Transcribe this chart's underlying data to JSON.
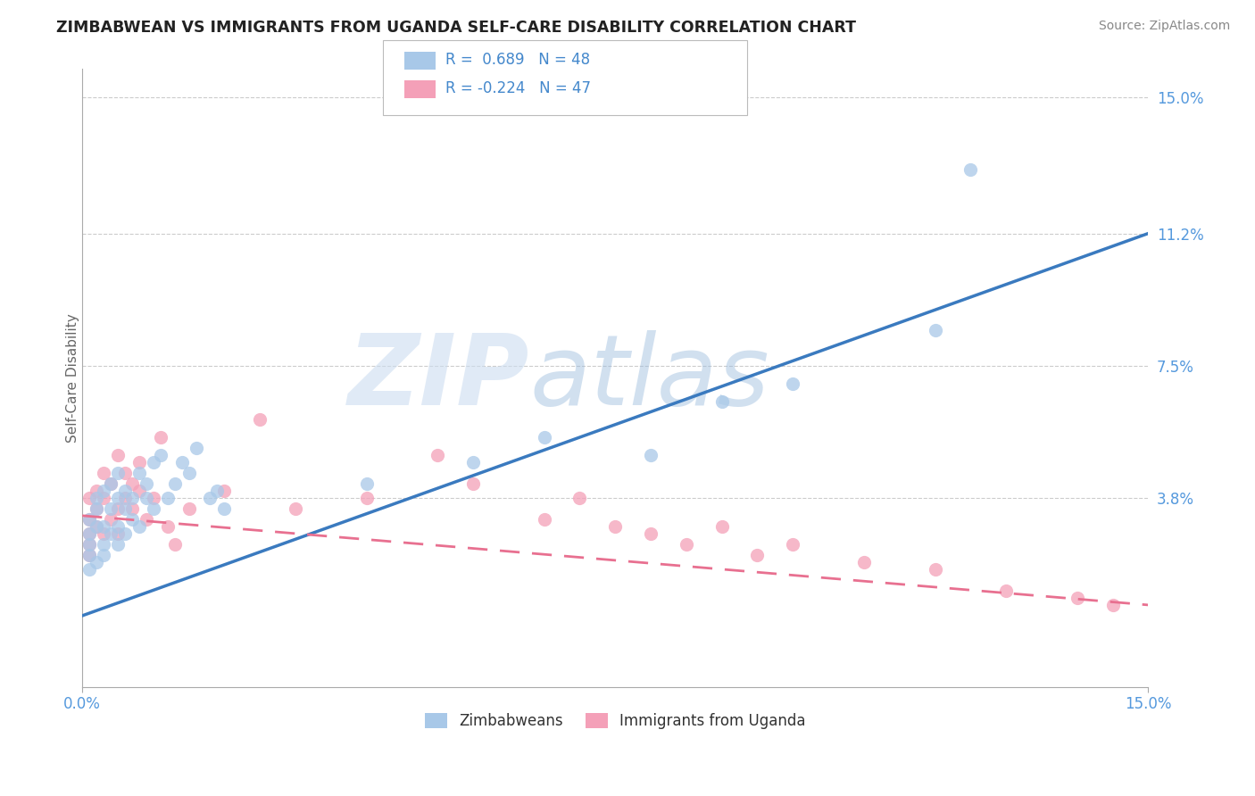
{
  "title": "ZIMBABWEAN VS IMMIGRANTS FROM UGANDA SELF-CARE DISABILITY CORRELATION CHART",
  "source": "Source: ZipAtlas.com",
  "ylabel": "Self-Care Disability",
  "xmin": 0.0,
  "xmax": 0.15,
  "ymin": -0.015,
  "ymax": 0.158,
  "blue_R": 0.689,
  "blue_N": 48,
  "pink_R": -0.224,
  "pink_N": 47,
  "blue_color": "#a8c8e8",
  "pink_color": "#f4a0b8",
  "blue_line_color": "#3a7abf",
  "pink_line_color": "#e87090",
  "legend_label_blue": "Zimbabweans",
  "legend_label_pink": "Immigrants from Uganda",
  "blue_line_x0": 0.0,
  "blue_line_y0": 0.005,
  "blue_line_x1": 0.15,
  "blue_line_y1": 0.112,
  "pink_line_x0": 0.0,
  "pink_line_y0": 0.033,
  "pink_line_x1": 0.15,
  "pink_line_y1": 0.008,
  "blue_scatter_x": [
    0.001,
    0.001,
    0.001,
    0.001,
    0.001,
    0.002,
    0.002,
    0.002,
    0.002,
    0.003,
    0.003,
    0.003,
    0.003,
    0.004,
    0.004,
    0.004,
    0.005,
    0.005,
    0.005,
    0.005,
    0.006,
    0.006,
    0.006,
    0.007,
    0.007,
    0.008,
    0.008,
    0.009,
    0.009,
    0.01,
    0.01,
    0.011,
    0.012,
    0.013,
    0.014,
    0.015,
    0.016,
    0.018,
    0.019,
    0.02,
    0.04,
    0.055,
    0.065,
    0.08,
    0.09,
    0.1,
    0.12,
    0.125
  ],
  "blue_scatter_y": [
    0.025,
    0.028,
    0.022,
    0.018,
    0.032,
    0.03,
    0.035,
    0.02,
    0.038,
    0.025,
    0.03,
    0.04,
    0.022,
    0.035,
    0.028,
    0.042,
    0.03,
    0.045,
    0.025,
    0.038,
    0.04,
    0.035,
    0.028,
    0.038,
    0.032,
    0.045,
    0.03,
    0.042,
    0.038,
    0.048,
    0.035,
    0.05,
    0.038,
    0.042,
    0.048,
    0.045,
    0.052,
    0.038,
    0.04,
    0.035,
    0.042,
    0.048,
    0.055,
    0.05,
    0.065,
    0.07,
    0.085,
    0.13
  ],
  "pink_scatter_x": [
    0.001,
    0.001,
    0.001,
    0.001,
    0.001,
    0.002,
    0.002,
    0.002,
    0.003,
    0.003,
    0.003,
    0.004,
    0.004,
    0.005,
    0.005,
    0.005,
    0.006,
    0.006,
    0.007,
    0.007,
    0.008,
    0.008,
    0.009,
    0.01,
    0.011,
    0.012,
    0.013,
    0.015,
    0.02,
    0.025,
    0.03,
    0.04,
    0.05,
    0.055,
    0.065,
    0.07,
    0.075,
    0.08,
    0.085,
    0.09,
    0.095,
    0.1,
    0.11,
    0.12,
    0.13,
    0.14,
    0.145
  ],
  "pink_scatter_y": [
    0.028,
    0.032,
    0.025,
    0.038,
    0.022,
    0.035,
    0.04,
    0.03,
    0.038,
    0.045,
    0.028,
    0.042,
    0.032,
    0.05,
    0.035,
    0.028,
    0.045,
    0.038,
    0.042,
    0.035,
    0.04,
    0.048,
    0.032,
    0.038,
    0.055,
    0.03,
    0.025,
    0.035,
    0.04,
    0.06,
    0.035,
    0.038,
    0.05,
    0.042,
    0.032,
    0.038,
    0.03,
    0.028,
    0.025,
    0.03,
    0.022,
    0.025,
    0.02,
    0.018,
    0.012,
    0.01,
    0.008
  ],
  "yticks": [
    0.038,
    0.075,
    0.112,
    0.15
  ],
  "ytick_labels": [
    "3.8%",
    "7.5%",
    "11.2%",
    "15.0%"
  ]
}
